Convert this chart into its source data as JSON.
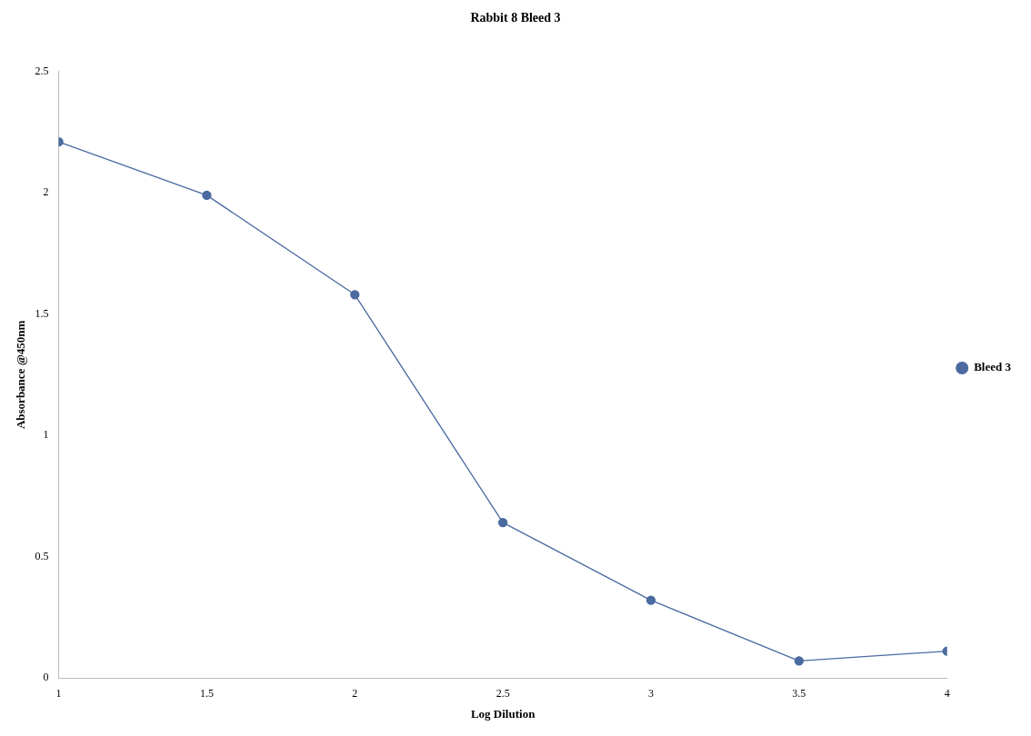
{
  "chart_data": {
    "type": "line",
    "title": "Rabbit 8 Bleed 3",
    "xlabel": "Log Dilution",
    "ylabel": "Absorbance @450nm",
    "x": [
      1,
      1.5,
      2,
      2.5,
      3,
      3.5,
      4
    ],
    "series": [
      {
        "name": "Bleed 3",
        "color": "#4a6aa0",
        "values": [
          2.21,
          1.99,
          1.58,
          0.64,
          0.32,
          0.07,
          0.11
        ]
      }
    ],
    "xlim": [
      1,
      4
    ],
    "xticks": [
      1,
      1.5,
      2,
      2.5,
      3,
      3.5,
      4
    ],
    "ylim": [
      0,
      2.5
    ],
    "yticks": [
      0,
      0.5,
      1,
      1.5,
      2,
      2.5
    ],
    "grid": false,
    "legend": "right",
    "marker": "circle",
    "line_style": "solid"
  }
}
